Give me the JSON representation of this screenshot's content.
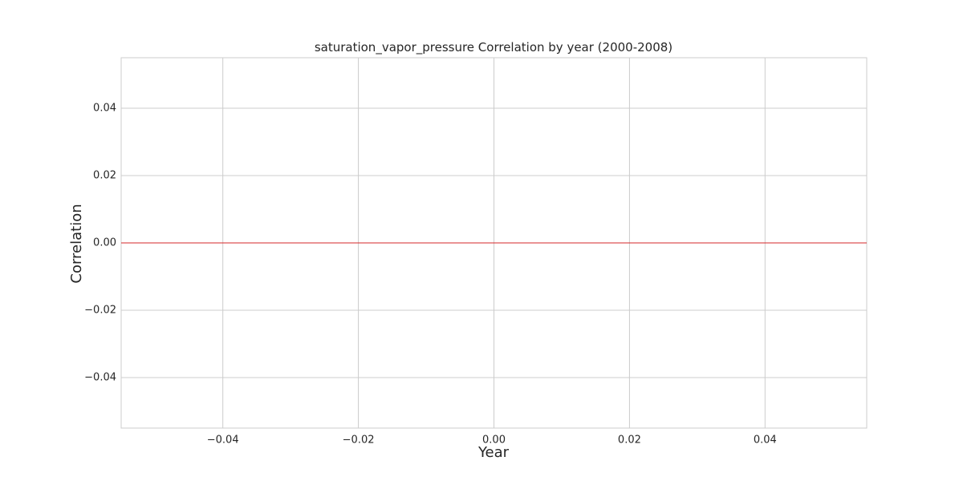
{
  "chart_data": {
    "type": "line",
    "title": "saturation_vapor_pressure Correlation by year (2000-2008)",
    "xlabel": "Year",
    "ylabel": "Correlation",
    "xlim": [
      -0.055,
      0.055
    ],
    "ylim": [
      -0.055,
      0.055
    ],
    "grid": true,
    "x_ticks": [
      -0.04,
      -0.02,
      0.0,
      0.02,
      0.04
    ],
    "x_tick_labels": [
      "−0.04",
      "−0.02",
      "0.00",
      "0.02",
      "0.04"
    ],
    "y_ticks": [
      0.04,
      0.02,
      0.0,
      -0.02,
      -0.04
    ],
    "y_tick_labels": [
      "0.04",
      "0.02",
      "0.00",
      "−0.02",
      "−0.04"
    ],
    "series": [],
    "reference_lines": [
      {
        "orientation": "horizontal",
        "y": 0,
        "color": "#d62728"
      }
    ],
    "colors": {
      "grid": "#cccccc",
      "frame": "#cccccc",
      "text": "#262626",
      "reference": "#d62728"
    }
  }
}
